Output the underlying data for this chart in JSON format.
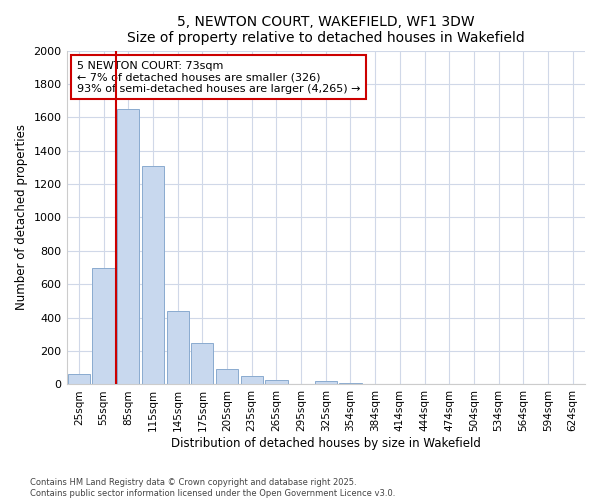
{
  "title": "5, NEWTON COURT, WAKEFIELD, WF1 3DW",
  "subtitle": "Size of property relative to detached houses in Wakefield",
  "xlabel": "Distribution of detached houses by size in Wakefield",
  "ylabel": "Number of detached properties",
  "categories": [
    "25sqm",
    "55sqm",
    "85sqm",
    "115sqm",
    "145sqm",
    "175sqm",
    "205sqm",
    "235sqm",
    "265sqm",
    "295sqm",
    "325sqm",
    "354sqm",
    "384sqm",
    "414sqm",
    "444sqm",
    "474sqm",
    "504sqm",
    "534sqm",
    "564sqm",
    "594sqm",
    "624sqm"
  ],
  "values": [
    60,
    700,
    1650,
    1310,
    440,
    250,
    90,
    50,
    25,
    0,
    20,
    10,
    0,
    0,
    0,
    0,
    0,
    0,
    0,
    0,
    0
  ],
  "bar_color": "#c8d8ee",
  "bar_edge_color": "#8aabcf",
  "grid_color": "#d0d8e8",
  "annotation_box_color": "#cc0000",
  "annotation_text": "5 NEWTON COURT: 73sqm\n← 7% of detached houses are smaller (326)\n93% of semi-detached houses are larger (4,265) →",
  "property_line_x": 1.5,
  "ylim": [
    0,
    2000
  ],
  "yticks": [
    0,
    200,
    400,
    600,
    800,
    1000,
    1200,
    1400,
    1600,
    1800,
    2000
  ],
  "footer_line1": "Contains HM Land Registry data © Crown copyright and database right 2025.",
  "footer_line2": "Contains public sector information licensed under the Open Government Licence v3.0.",
  "bg_color": "#ffffff",
  "plot_bg_color": "#ffffff"
}
